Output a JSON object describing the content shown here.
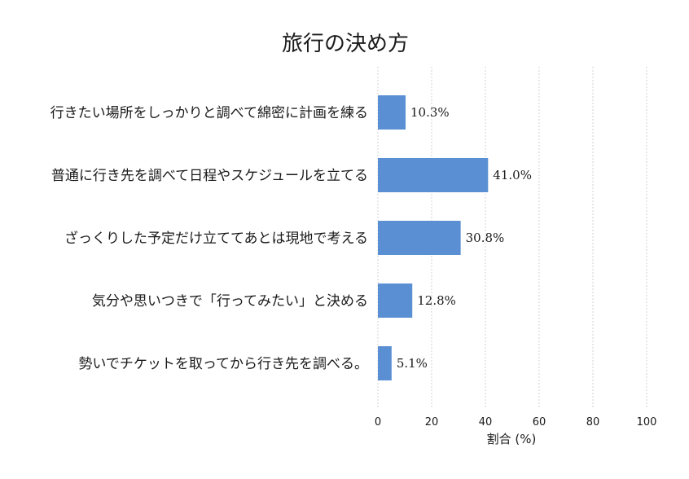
{
  "chart_data": {
    "type": "bar",
    "orientation": "horizontal",
    "title": "旅行の決め方",
    "xlabel": "割合 (%)",
    "ylabel": "",
    "xlim": [
      0,
      100
    ],
    "xticks": [
      "0",
      "20",
      "40",
      "60",
      "80",
      "100"
    ],
    "grid": true,
    "categories": [
      "行きたい場所をしっかりと調べて綿密に計画を練る",
      "普通に行き先を調べて日程やスケジュールを立てる",
      "ざっくりした予定だけ立ててあとは現地で考える",
      "気分や思いつきで「行ってみたい」と決める",
      "勢いでチケットを取ってから行き先を調べる。"
    ],
    "values": [
      10.3,
      41.0,
      30.8,
      12.8,
      5.1
    ],
    "data_labels": [
      "10.3%",
      "41.0%",
      "30.8%",
      "12.8%",
      "5.1%"
    ],
    "bar_color": "#5b8fd3"
  }
}
